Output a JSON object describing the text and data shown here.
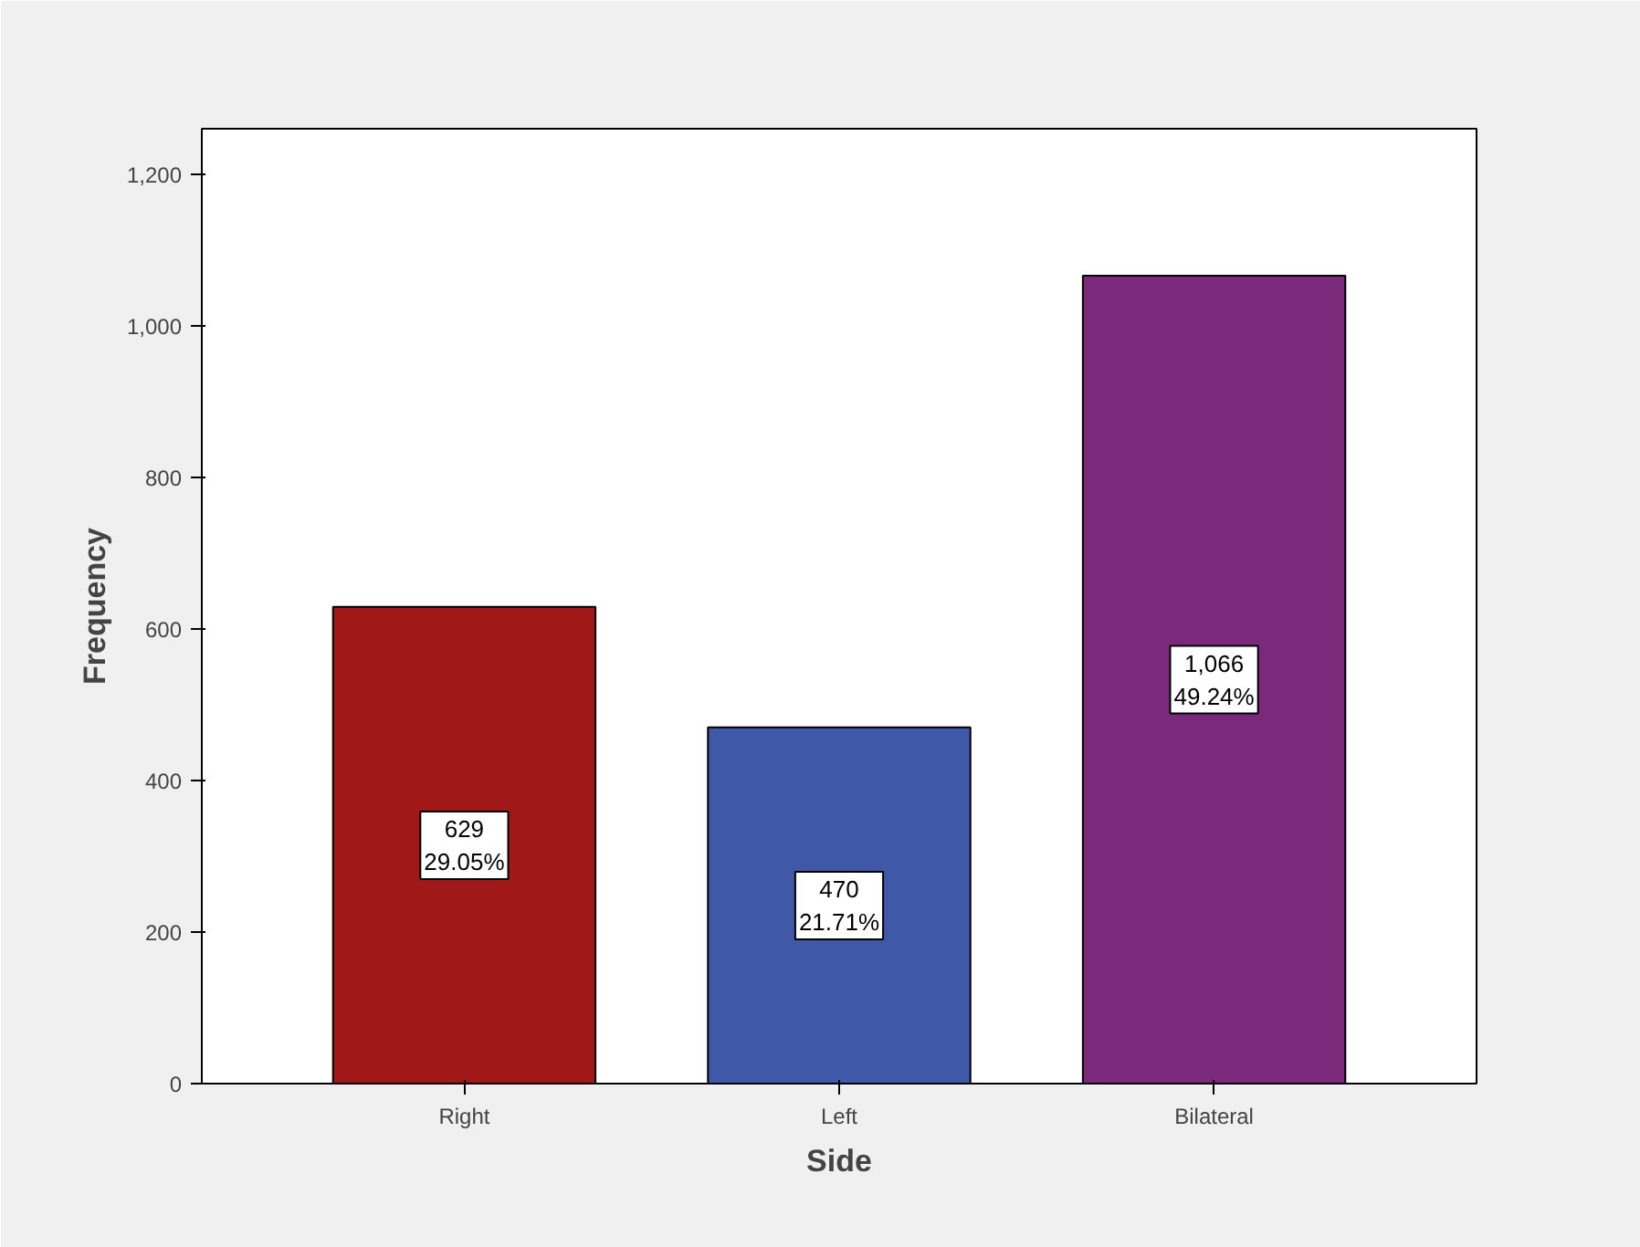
{
  "chart_data": {
    "type": "bar",
    "xlabel": "Side",
    "ylabel": "Frequency",
    "categories": [
      "Right",
      "Left",
      "Bilateral"
    ],
    "values": [
      629,
      470,
      1066
    ],
    "colors": [
      "#a01818",
      "#3f58a8",
      "#7b2a7b"
    ],
    "value_labels": [
      "629\n29.05%",
      "470\n21.71%",
      "1,066\n49.24%"
    ],
    "ylim": [
      0,
      1260
    ],
    "yticks": [
      0,
      200,
      400,
      600,
      800,
      {
        "value": 1000,
        "label": "1,000"
      },
      {
        "value": 1200,
        "label": "1,200"
      }
    ],
    "grid": false
  }
}
